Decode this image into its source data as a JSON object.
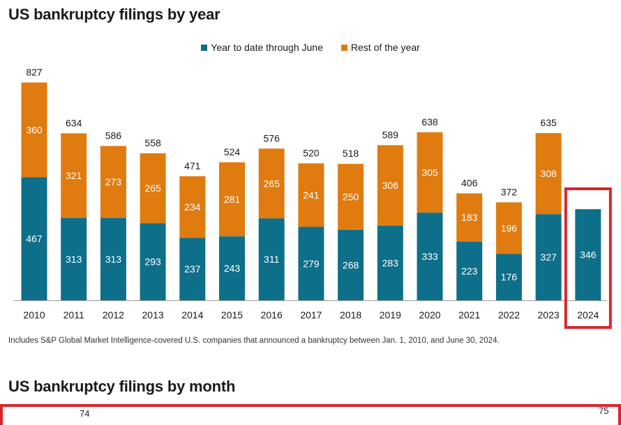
{
  "title": "US bankruptcy filings by year",
  "legend": {
    "ytd_label": "Year to date through June",
    "rest_label": "Rest of the year"
  },
  "colors": {
    "ytd": "#0e6f8a",
    "rest": "#e07b10",
    "highlight": "#d9252b",
    "axis": "#9a9a9a"
  },
  "chart_data": {
    "type": "bar",
    "stacked": true,
    "title": "US bankruptcy filings by year",
    "categories": [
      "2010",
      "2011",
      "2012",
      "2013",
      "2014",
      "2015",
      "2016",
      "2017",
      "2018",
      "2019",
      "2020",
      "2021",
      "2022",
      "2023",
      "2024"
    ],
    "series": [
      {
        "name": "Year to date through June",
        "values": [
          467,
          313,
          313,
          293,
          237,
          243,
          311,
          279,
          268,
          283,
          333,
          223,
          176,
          327,
          346
        ]
      },
      {
        "name": "Rest of the year",
        "values": [
          360,
          321,
          273,
          265,
          234,
          281,
          265,
          241,
          250,
          306,
          305,
          183,
          196,
          308,
          null
        ]
      }
    ],
    "totals": [
      827,
      634,
      586,
      558,
      471,
      524,
      576,
      520,
      518,
      589,
      638,
      406,
      372,
      635,
      null
    ],
    "highlighted_category": "2024",
    "legend_position": "top-center",
    "grid": false
  },
  "footnote": "Includes S&P Global Market Intelligence-covered U.S. companies that announced a bankruptcy between Jan. 1, 2010, and June 30, 2024.",
  "second_chart": {
    "title": "US bankruptcy filings by month",
    "visible_labels": [
      "74",
      "75"
    ]
  }
}
